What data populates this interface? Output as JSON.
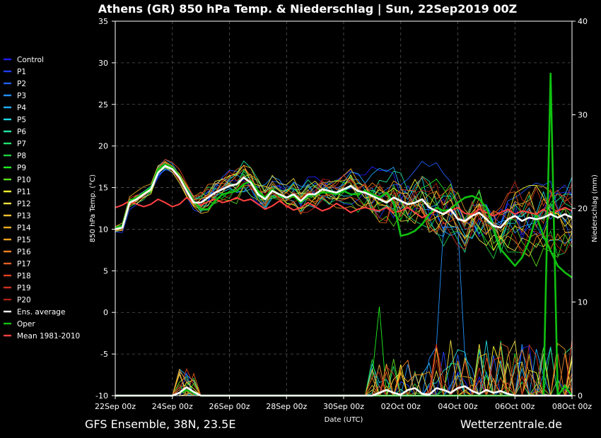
{
  "chart_data": {
    "type": "line",
    "title": "Athens  (GR)  850 hPa Temp. & Niederschlag | Sun, 22Sep2019 00Z",
    "ylabel": "850 hPa Temp. (°C)",
    "y2label": "Niederschlag (mm)",
    "xlabel": "Date (UTC)",
    "ylim": [
      -10,
      35
    ],
    "y2lim": [
      0,
      40
    ],
    "yticks": [
      "35",
      "30",
      "25",
      "20",
      "15",
      "10",
      "5",
      "0",
      "-5",
      "-10"
    ],
    "y2ticks": [
      "40",
      "30",
      "20",
      "10",
      "0"
    ],
    "xlim": [
      0,
      16
    ],
    "x_ticks": [
      {
        "x": 0,
        "label": "22Sep 00z"
      },
      {
        "x": 2,
        "label": "24Sep 00z"
      },
      {
        "x": 4,
        "label": "26Sep 00z"
      },
      {
        "x": 6,
        "label": "28Sep 00z"
      },
      {
        "x": 8,
        "label": "30Sep 00z"
      },
      {
        "x": 10,
        "label": "02Oct 00z"
      },
      {
        "x": 12,
        "label": "04Oct 00z"
      },
      {
        "x": 14,
        "label": "06Oct 00z"
      },
      {
        "x": 16,
        "label": "08Oct 00z"
      }
    ],
    "grid": true,
    "legend_position": "left",
    "legend": [
      {
        "name": "Control",
        "color": "#2020ff"
      },
      {
        "name": "P1",
        "color": "#2040ff"
      },
      {
        "name": "P2",
        "color": "#2060ff"
      },
      {
        "name": "P3",
        "color": "#2090ff"
      },
      {
        "name": "P4",
        "color": "#20b0ff"
      },
      {
        "name": "P5",
        "color": "#20d8e8"
      },
      {
        "name": "P6",
        "color": "#20e8a0"
      },
      {
        "name": "P7",
        "color": "#20e070"
      },
      {
        "name": "P8",
        "color": "#20d040"
      },
      {
        "name": "P9",
        "color": "#20f020"
      },
      {
        "name": "P10",
        "color": "#60e020"
      },
      {
        "name": "P11",
        "color": "#ffff30"
      },
      {
        "name": "P12",
        "color": "#f0e040"
      },
      {
        "name": "P13",
        "color": "#f0c030"
      },
      {
        "name": "P14",
        "color": "#f0b020"
      },
      {
        "name": "P15",
        "color": "#f0a020"
      },
      {
        "name": "P16",
        "color": "#f08020"
      },
      {
        "name": "P17",
        "color": "#e06020"
      },
      {
        "name": "P18",
        "color": "#e04020"
      },
      {
        "name": "P19",
        "color": "#d03020"
      },
      {
        "name": "P20",
        "color": "#b02010"
      },
      {
        "name": "Ens. average",
        "color": "#ffffff"
      },
      {
        "name": "Oper",
        "color": "#10c010"
      },
      {
        "name": "Mean 1981-2010",
        "color": "#ff4040"
      }
    ],
    "ens_average": {
      "x": [
        0,
        0.25,
        0.5,
        0.75,
        1,
        1.25,
        1.5,
        1.75,
        2,
        2.25,
        2.5,
        2.75,
        3,
        3.25,
        3.5,
        3.75,
        4,
        4.25,
        4.5,
        4.75,
        5,
        5.25,
        5.5,
        5.75,
        6,
        6.25,
        6.5,
        6.75,
        7,
        7.25,
        7.5,
        7.75,
        8,
        8.25,
        8.5,
        8.75,
        9,
        9.25,
        9.5,
        9.75,
        10,
        10.25,
        10.5,
        10.75,
        11,
        11.25,
        11.5,
        11.75,
        12,
        12.25,
        12.5,
        12.75,
        13,
        13.25,
        13.5,
        13.75,
        14,
        14.25,
        14.5,
        14.75,
        15,
        15.25,
        15.5,
        15.75,
        16
      ],
      "y": [
        10,
        10.2,
        13.2,
        13.6,
        14.2,
        14.8,
        16.8,
        17.6,
        17.2,
        16.2,
        14.6,
        13.2,
        13.2,
        13.8,
        14.4,
        14.8,
        15.2,
        15.4,
        16.2,
        15.6,
        14.2,
        13.6,
        14.6,
        14.2,
        13.8,
        14.2,
        13.4,
        14.2,
        14.2,
        14.8,
        14.6,
        14.4,
        14.8,
        15.2,
        14.6,
        14.4,
        14,
        13.6,
        13.2,
        13.8,
        13.4,
        13,
        13.2,
        13.6,
        12.6,
        12.2,
        11.8,
        12.4,
        11.2,
        11,
        11.6,
        12,
        11.2,
        10.4,
        10.2,
        11.2,
        11.6,
        11,
        11.4,
        11.2,
        11.4,
        11.8,
        11.4,
        11.8,
        11.4
      ]
    },
    "oper": {
      "x": [
        0,
        0.25,
        0.5,
        0.75,
        1,
        1.25,
        1.5,
        1.75,
        2,
        2.25,
        2.5,
        2.75,
        3,
        3.25,
        3.5,
        3.75,
        4,
        4.25,
        4.5,
        4.75,
        5,
        5.25,
        5.5,
        5.75,
        6,
        6.25,
        6.5,
        6.75,
        7,
        7.25,
        7.5,
        7.75,
        8,
        8.25,
        8.5,
        8.75,
        9,
        9.25,
        9.5,
        9.75,
        10,
        10.25,
        10.5,
        10.75,
        11,
        11.25,
        11.5,
        11.75,
        12,
        12.25,
        12.5,
        12.75,
        13,
        13.25,
        13.5,
        13.75,
        14,
        14.25,
        14.5,
        14.75,
        15,
        15.25,
        15.5,
        15.75,
        16
      ],
      "y": [
        10.2,
        10.4,
        13.4,
        13.8,
        14.4,
        15,
        17.2,
        17.8,
        17.4,
        16.4,
        14.8,
        13.4,
        12.4,
        12.4,
        13.4,
        14.2,
        14.4,
        14.6,
        15.4,
        15.8,
        14.6,
        13.8,
        14.8,
        14,
        13.8,
        14,
        13.2,
        14,
        14.2,
        14.4,
        14.4,
        14.2,
        14.6,
        14.2,
        14.2,
        14.6,
        14.2,
        13.8,
        14.4,
        13.2,
        9.2,
        9.4,
        9.8,
        10.6,
        11.8,
        12.6,
        12.2,
        12.4,
        13.2,
        13.8,
        14,
        13.6,
        12.6,
        10.2,
        7.6,
        6.6,
        5.6,
        6.6,
        8.6,
        11.6,
        9.2,
        7.4,
        5.6,
        4.8,
        4.2
      ]
    },
    "climate_mean": {
      "x": [
        0,
        0.25,
        0.5,
        0.75,
        1,
        1.25,
        1.5,
        1.75,
        2,
        2.25,
        2.5,
        2.75,
        3,
        3.25,
        3.5,
        3.75,
        4,
        4.25,
        4.5,
        4.75,
        5,
        5.25,
        5.5,
        5.75,
        6,
        6.25,
        6.5,
        6.75,
        7,
        7.25,
        7.5,
        7.75,
        8,
        8.25,
        8.5,
        8.75,
        9,
        9.25,
        9.5,
        9.75,
        10,
        10.25,
        10.5,
        10.75,
        11,
        11.25,
        11.5,
        11.75,
        12,
        12.25,
        12.5,
        12.75,
        13,
        13.25,
        13.5,
        13.75,
        14,
        14.25,
        14.5,
        14.75,
        15,
        15.25,
        15.5,
        15.75,
        16
      ],
      "y": [
        12.6,
        12.9,
        13.4,
        13,
        12.7,
        13,
        13.6,
        13.2,
        12.7,
        13,
        13.8,
        13.2,
        12.9,
        13.3,
        13.6,
        13.2,
        13.4,
        13.8,
        13.4,
        13.6,
        13,
        12.4,
        12.8,
        13.4,
        12.8,
        12.3,
        12.6,
        13.2,
        12.7,
        12.2,
        12.5,
        13.1,
        12.6,
        12,
        12.4,
        12.6,
        12.4,
        12.2,
        12.6,
        12,
        12.2,
        12.6,
        12,
        11.4,
        11.8,
        12.2,
        11.8,
        12.2,
        12.6,
        11.9,
        11.8,
        12.4,
        12,
        11.6,
        12,
        12.4,
        11.8,
        12.2,
        12,
        11.8,
        12.4,
        11.8,
        12.2,
        12.6,
        12.2
      ]
    },
    "precip_ens_average": {
      "x": [
        0,
        1,
        2,
        2.25,
        2.5,
        2.75,
        3,
        4,
        5,
        6,
        7,
        8,
        8.5,
        8.75,
        9,
        9.25,
        9.5,
        9.75,
        10,
        10.25,
        10.5,
        10.75,
        11,
        11.25,
        11.5,
        11.75,
        12,
        12.25,
        12.5,
        12.75,
        13,
        13.25,
        13.5,
        13.75,
        14,
        14.5,
        15,
        15.5,
        16
      ],
      "y": [
        0,
        0,
        0,
        0.3,
        0.9,
        0.4,
        0,
        0,
        0,
        0,
        0,
        0,
        0,
        0,
        0,
        0.3,
        0.6,
        0.3,
        0.1,
        0.6,
        0.8,
        0.2,
        0.1,
        0.8,
        0.6,
        0.3,
        0.8,
        1,
        0.5,
        0.2,
        0.6,
        0.3,
        0.5,
        0.2,
        0,
        0,
        0,
        0,
        0
      ]
    },
    "precip_oper": {
      "x": [
        0,
        1,
        2,
        2.5,
        3,
        4,
        5,
        6,
        7,
        8,
        9,
        10,
        11,
        12,
        13,
        13.5,
        14,
        14.5,
        15,
        15.25,
        15.5,
        15.75,
        16
      ],
      "y": [
        0,
        0,
        0,
        0.6,
        0,
        0,
        0,
        0,
        0,
        0,
        0,
        0,
        0,
        0,
        0,
        0,
        0,
        0,
        0,
        34.4,
        0,
        1,
        0
      ]
    }
  },
  "footer": {
    "left": "GFS Ensemble, 38N, 23.5E",
    "right": "Wetterzentrale.de"
  }
}
